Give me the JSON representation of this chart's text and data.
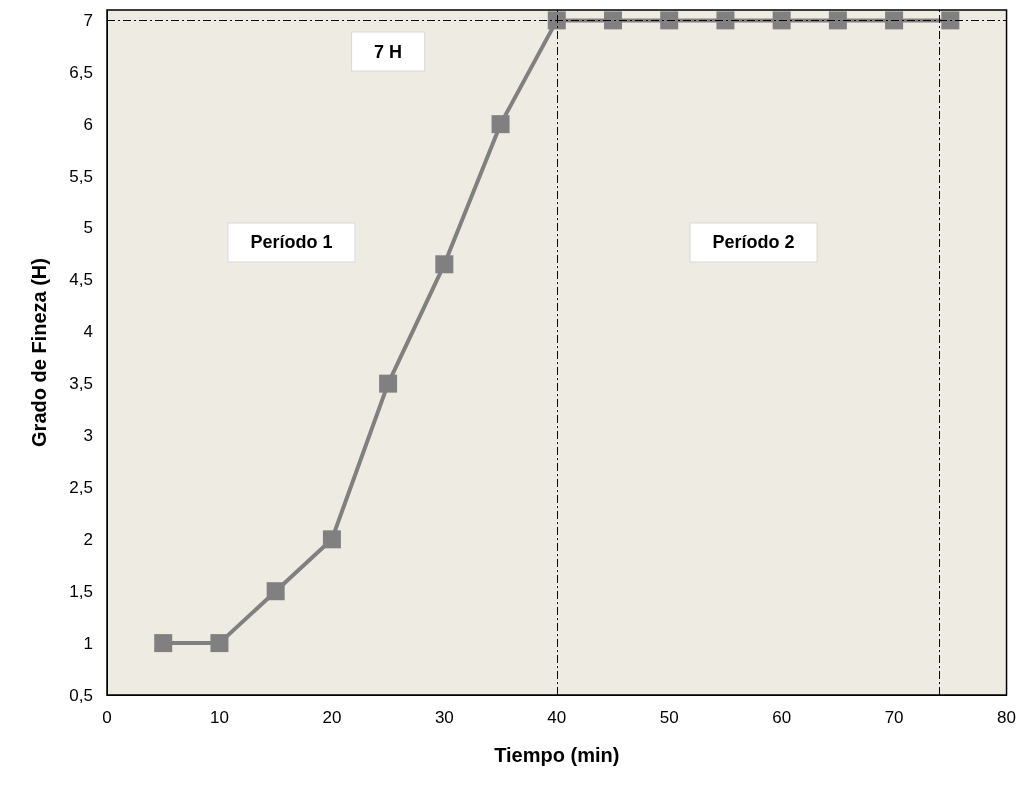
{
  "chart_data": {
    "type": "line",
    "xlabel": "Tiempo (min)",
    "ylabel": "Grado de Fineza (H)",
    "x": [
      5,
      10,
      15,
      20,
      25,
      30,
      35,
      40,
      45,
      50,
      55,
      60,
      65,
      70,
      75
    ],
    "series": [
      {
        "color": "#808080",
        "values": [
          1,
          1,
          1.5,
          2,
          3.5,
          4.65,
          6,
          7,
          7,
          7,
          7,
          7,
          7,
          7,
          7
        ]
      }
    ],
    "xlim": [
      0,
      80
    ],
    "xticks": [
      0,
      10,
      20,
      30,
      40,
      50,
      60,
      70,
      80
    ],
    "ylim": [
      0.5,
      7.1
    ],
    "yticks": [
      {
        "value": 0.5,
        "label": "0,5"
      },
      1,
      {
        "value": 1.5,
        "label": "1,5"
      },
      2,
      {
        "value": 2.5,
        "label": "2,5"
      },
      3,
      {
        "value": 3.5,
        "label": "3,5"
      },
      4,
      {
        "value": 4.5,
        "label": "4,5"
      },
      5,
      {
        "value": 5.5,
        "label": "5,5"
      },
      6,
      {
        "value": 6.5,
        "label": "6,5"
      },
      7
    ],
    "ref_lines": [
      {
        "axis": "y",
        "value": 7,
        "color": "#000000"
      },
      {
        "axis": "x",
        "value": 40,
        "color": "#000000"
      },
      {
        "axis": "x",
        "value": 74,
        "color": "#000000"
      }
    ],
    "annotations": [
      "7 H",
      "Período 1",
      "Período 2"
    ],
    "grid": false,
    "marker": "square",
    "line_style": "solid"
  }
}
